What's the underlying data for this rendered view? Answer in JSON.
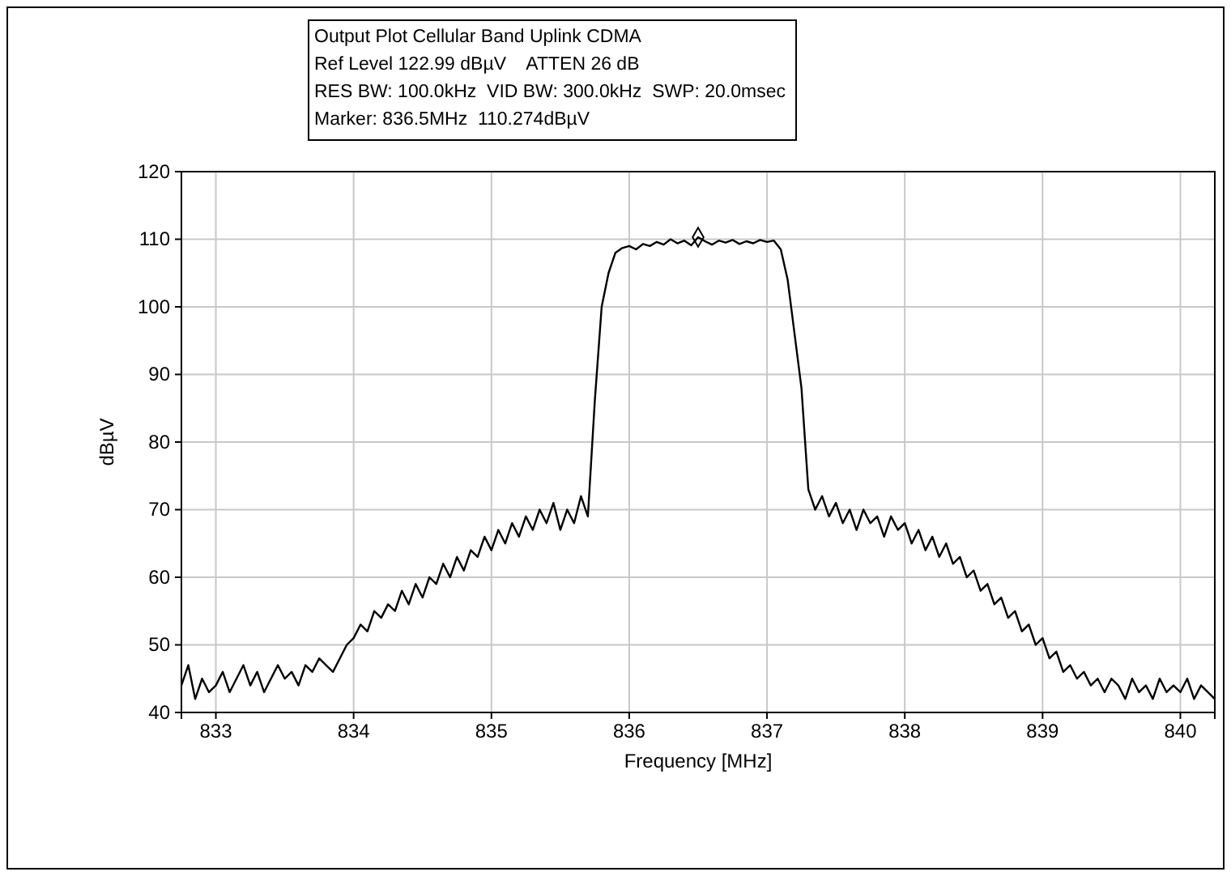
{
  "chart_data": {
    "type": "line",
    "title": "Output Plot Cellular Band Uplink CDMA",
    "annotations": [
      "Ref Level 122.99 dBµV    ATTEN 26 dB",
      "RES BW: 100.0kHz  VID BW: 300.0kHz  SWP: 20.0msec",
      "Marker: 836.5MHz  110.274dBµV"
    ],
    "xlabel": "Frequency [MHz]",
    "ylabel": "dBµV",
    "xlim": [
      832.75,
      840.25
    ],
    "ylim": [
      40,
      120
    ],
    "xticks": [
      833,
      834,
      835,
      836,
      837,
      838,
      839,
      840
    ],
    "yticks": [
      40,
      50,
      60,
      70,
      80,
      90,
      100,
      110,
      120
    ],
    "grid": true,
    "series": [
      {
        "color": "#000000",
        "marker": "none",
        "x": [
          832.75,
          832.8,
          832.85,
          832.9,
          832.95,
          833,
          833.05,
          833.1,
          833.15,
          833.2,
          833.25,
          833.3,
          833.35,
          833.4,
          833.45,
          833.5,
          833.55,
          833.6,
          833.65,
          833.7,
          833.75,
          833.8,
          833.85,
          833.9,
          833.95,
          834,
          834.05,
          834.1,
          834.15,
          834.2,
          834.25,
          834.3,
          834.35,
          834.4,
          834.45,
          834.5,
          834.55,
          834.6,
          834.65,
          834.7,
          834.75,
          834.8,
          834.85,
          834.9,
          834.95,
          835,
          835.05,
          835.1,
          835.15,
          835.2,
          835.25,
          835.3,
          835.35,
          835.4,
          835.45,
          835.5,
          835.55,
          835.6,
          835.65,
          835.7,
          835.75,
          835.8,
          835.85,
          835.9,
          835.95,
          836,
          836.05,
          836.1,
          836.15,
          836.2,
          836.25,
          836.3,
          836.35,
          836.4,
          836.45,
          836.5,
          836.55,
          836.6,
          836.65,
          836.7,
          836.75,
          836.8,
          836.85,
          836.9,
          836.95,
          837,
          837.05,
          837.1,
          837.15,
          837.2,
          837.25,
          837.3,
          837.35,
          837.4,
          837.45,
          837.5,
          837.55,
          837.6,
          837.65,
          837.7,
          837.75,
          837.8,
          837.85,
          837.9,
          837.95,
          838,
          838.05,
          838.1,
          838.15,
          838.2,
          838.25,
          838.3,
          838.35,
          838.4,
          838.45,
          838.5,
          838.55,
          838.6,
          838.65,
          838.7,
          838.75,
          838.8,
          838.85,
          838.9,
          838.95,
          839,
          839.05,
          839.1,
          839.15,
          839.2,
          839.25,
          839.3,
          839.35,
          839.4,
          839.45,
          839.5,
          839.55,
          839.6,
          839.65,
          839.7,
          839.75,
          839.8,
          839.85,
          839.9,
          839.95,
          840,
          840.05,
          840.1,
          840.15,
          840.2,
          840.25
        ],
        "values": [
          44,
          47,
          42,
          45,
          43,
          44,
          46,
          43,
          45,
          47,
          44,
          46,
          43,
          45,
          47,
          45,
          46,
          44,
          47,
          46,
          48,
          47,
          46,
          48,
          50,
          51,
          53,
          52,
          55,
          54,
          56,
          55,
          58,
          56,
          59,
          57,
          60,
          59,
          62,
          60,
          63,
          61,
          64,
          63,
          66,
          64,
          67,
          65,
          68,
          66,
          69,
          67,
          70,
          68,
          71,
          67,
          70,
          68,
          72,
          69,
          86,
          100,
          105,
          108,
          108.7,
          109,
          108.5,
          109.3,
          109,
          109.6,
          109.2,
          110,
          109.4,
          109.8,
          109.1,
          110.3,
          109.7,
          109.2,
          109.8,
          109.5,
          109.9,
          109.3,
          109.7,
          109.4,
          109.9,
          109.6,
          109.8,
          108.5,
          104,
          96,
          88,
          73,
          70,
          72,
          69,
          71,
          68,
          70,
          67,
          70,
          68,
          69,
          66,
          69,
          67,
          68,
          65,
          67,
          64,
          66,
          63,
          65,
          62,
          63,
          60,
          61,
          58,
          59,
          56,
          57,
          54,
          55,
          52,
          53,
          50,
          51,
          48,
          49,
          46,
          47,
          45,
          46,
          44,
          45,
          43,
          45,
          44,
          42,
          45,
          43,
          44,
          42,
          45,
          43,
          44,
          43,
          45,
          42,
          44,
          43,
          42
        ]
      },
      {
        "type": "scatter",
        "color": "#000000",
        "marker": "diamond",
        "x": [
          836.5
        ],
        "values": [
          110.3
        ]
      }
    ]
  }
}
